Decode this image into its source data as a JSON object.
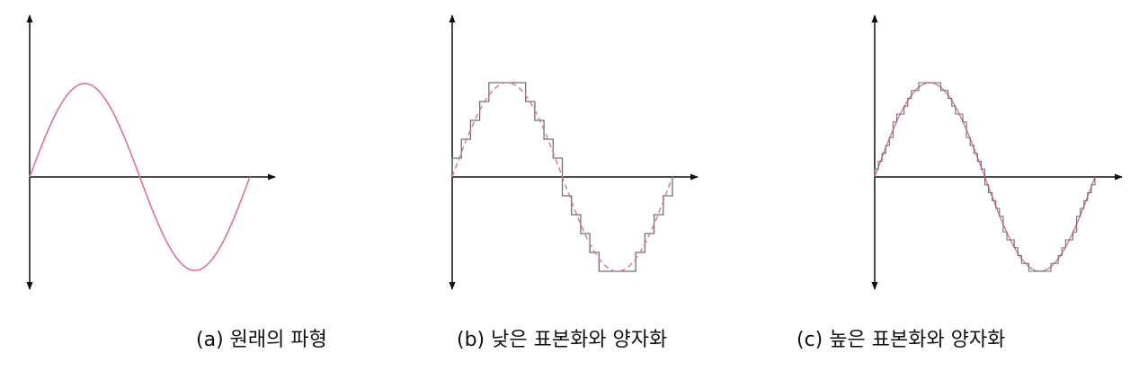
{
  "captions": {
    "a": "(a) 원래의 파형",
    "b": "(b) 낮은 표본화와 양자화",
    "c": "(c) 높은 표본화와 양자화"
  },
  "colors": {
    "axis": "#111111",
    "sine": "#e0709a",
    "step": "#707070",
    "background": "#ffffff"
  },
  "panels": [
    {
      "id": "a",
      "waveform": "sine",
      "style": "solid"
    },
    {
      "id": "b",
      "waveform": "sine",
      "style": "dashed",
      "quantized": "low",
      "steps_per_cycle": 24,
      "levels": 10
    },
    {
      "id": "c",
      "waveform": "sine",
      "style": "solid",
      "quantized": "high",
      "steps_per_cycle": 60,
      "levels": 24
    }
  ]
}
